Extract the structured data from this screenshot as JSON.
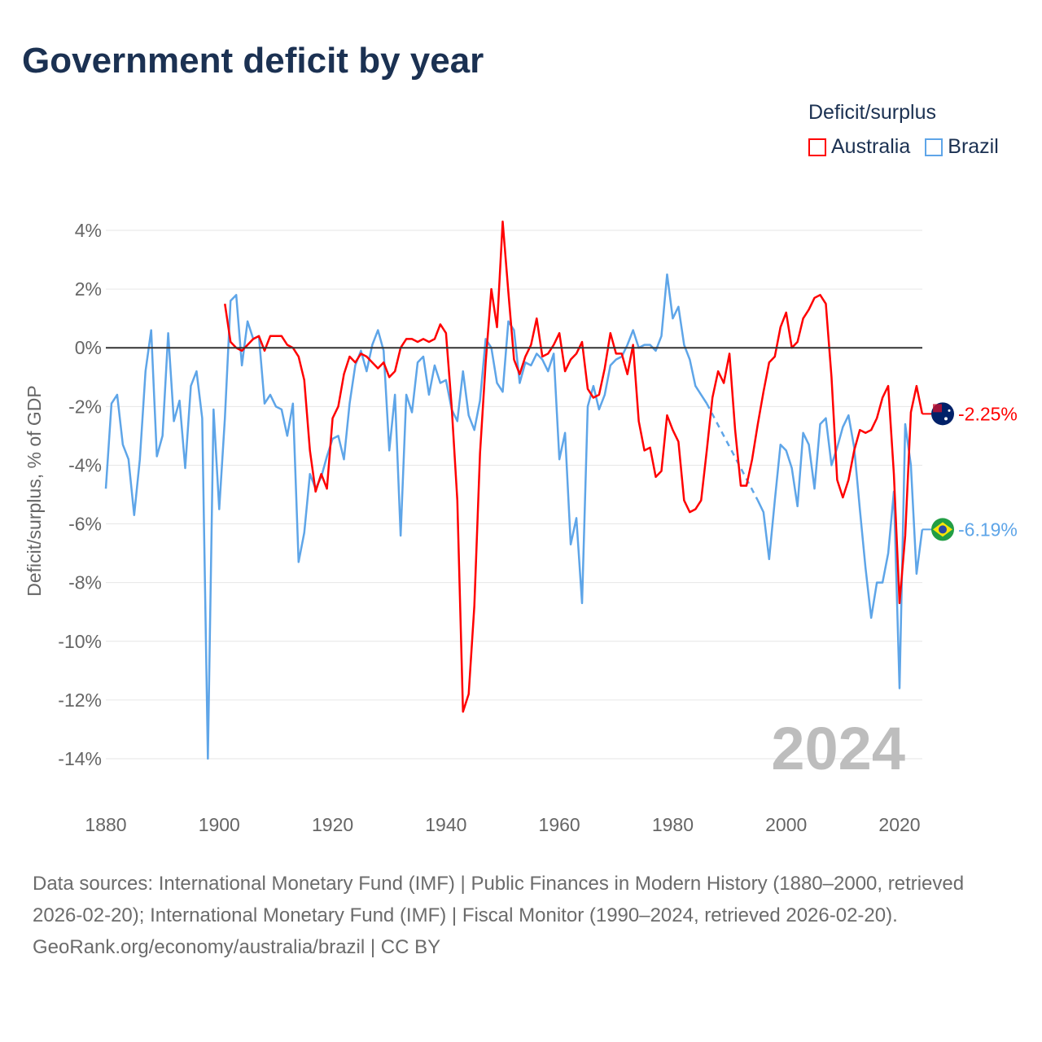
{
  "title": "Government deficit by year",
  "legend": {
    "title": "Deficit/surplus",
    "items": [
      {
        "name": "Australia",
        "color": "#ff0000"
      },
      {
        "name": "Brazil",
        "color": "#5ea5e8"
      }
    ]
  },
  "footer": {
    "sources": "Data sources: International Monetary Fund (IMF) | Public Finances in Modern History (1880–2000, retrieved 2026-02-20); International Monetary Fund (IMF) | Fiscal Monitor (1990–2024, retrieved 2026-02-20).",
    "credit": "GeoRank.org/economy/australia/brazil | CC BY"
  },
  "chart_data": {
    "type": "line",
    "title": "Government deficit by year",
    "xlabel": "",
    "ylabel": "Deficit/surplus, % of GDP",
    "year_watermark": "2024",
    "xlim": [
      1880,
      2024
    ],
    "ylim": [
      -14,
      4
    ],
    "x_ticks": [
      "1880",
      "1900",
      "1920",
      "1940",
      "1960",
      "1980",
      "2000",
      "2020"
    ],
    "y_ticks": [
      {
        "v": 4,
        "label": "4%"
      },
      {
        "v": 2,
        "label": "2%"
      },
      {
        "v": 0,
        "label": "0%"
      },
      {
        "v": -2,
        "label": "-2%"
      },
      {
        "v": -4,
        "label": "-4%"
      },
      {
        "v": -6,
        "label": "-6%"
      },
      {
        "v": -8,
        "label": "-8%"
      },
      {
        "v": -10,
        "label": "-10%"
      },
      {
        "v": -12,
        "label": "-12%"
      },
      {
        "v": -14,
        "label": "-14%"
      }
    ],
    "grid": true,
    "legend_position": "top-right",
    "series": [
      {
        "name": "Australia",
        "color": "#ff0000",
        "end_label": "-2.25%",
        "start": 1901,
        "values": [
          1.5,
          0.2,
          0.0,
          -0.1,
          0.1,
          0.3,
          0.4,
          -0.1,
          0.4,
          0.4,
          0.4,
          0.1,
          0.0,
          -0.3,
          -1.1,
          -3.5,
          -4.9,
          -4.3,
          -4.8,
          -2.4,
          -2.0,
          -0.9,
          -0.3,
          -0.5,
          -0.2,
          -0.3,
          -0.5,
          -0.7,
          -0.5,
          -1.0,
          -0.8,
          0.0,
          0.3,
          0.3,
          0.2,
          0.3,
          0.2,
          0.3,
          0.8,
          0.5,
          -2.0,
          -5.2,
          -12.4,
          -11.8,
          -8.8,
          -3.6,
          -0.5,
          2.0,
          0.7,
          4.3,
          1.9,
          -0.4,
          -0.9,
          -0.3,
          0.1,
          1.0,
          -0.3,
          -0.2,
          0.1,
          0.5,
          -0.8,
          -0.4,
          -0.2,
          0.2,
          -1.4,
          -1.7,
          -1.6,
          -0.7,
          0.5,
          -0.2,
          -0.2,
          -0.9,
          0.1,
          -2.5,
          -3.5,
          -3.4,
          -4.4,
          -4.2,
          -2.3,
          -2.8,
          -3.2,
          -5.2,
          -5.6,
          -5.5,
          -5.2,
          -3.5,
          -1.7,
          -0.8,
          -1.2,
          -0.2,
          -2.8,
          -4.7,
          -4.7,
          -3.8,
          -2.6,
          -1.5,
          -0.5,
          -0.3,
          0.7,
          1.2,
          0.0,
          0.2,
          1.0,
          1.3,
          1.7,
          1.8,
          1.5,
          -1.0,
          -4.5,
          -5.1,
          -4.5,
          -3.5,
          -2.8,
          -2.9,
          -2.8,
          -2.4,
          -1.7,
          -1.3,
          -4.3,
          -8.7,
          -6.4,
          -2.2,
          -1.3,
          -2.25
        ]
      },
      {
        "name": "Brazil",
        "color": "#5ea5e8",
        "end_label": "-6.19%",
        "start": 1880,
        "values": [
          -4.8,
          -1.9,
          -1.6,
          -3.3,
          -3.8,
          -5.7,
          -3.8,
          -0.8,
          0.6,
          -3.7,
          -3.0,
          0.5,
          -2.5,
          -1.8,
          -4.1,
          -1.3,
          -0.8,
          -2.4,
          -14.0,
          -2.1,
          -5.5,
          -2.4,
          1.6,
          1.8,
          -0.6,
          0.9,
          0.3,
          0.4,
          -1.9,
          -1.6,
          -2.0,
          -2.1,
          -3.0,
          -1.9,
          -7.3,
          -6.3,
          -4.3,
          -4.8,
          -4.4,
          -3.7,
          -3.1,
          -3.0,
          -3.8,
          -1.9,
          -0.6,
          -0.1,
          -0.8,
          0.1,
          0.6,
          -0.1,
          -3.5,
          -1.6,
          -6.4,
          -1.6,
          -2.2,
          -0.5,
          -0.3,
          -1.6,
          -0.6,
          -1.2,
          -1.1,
          -2.1,
          -2.5,
          -0.8,
          -2.3,
          -2.8,
          -1.8,
          0.3,
          0.0,
          -1.2,
          -1.5,
          0.9,
          0.6,
          -1.2,
          -0.5,
          -0.6,
          -0.2,
          -0.4,
          -0.8,
          -0.2,
          -3.8,
          -2.9,
          -6.7,
          -5.8,
          -8.7,
          -2.0,
          -1.3,
          -2.1,
          -1.6,
          -0.6,
          -0.4,
          -0.3,
          0.1,
          0.6,
          0.0,
          0.1,
          0.1,
          -0.1,
          0.4,
          2.5,
          1.0,
          1.4,
          0.1,
          -0.4,
          -1.3,
          -1.6,
          -1.9,
          null,
          null,
          null,
          null,
          null,
          null,
          null,
          null,
          -5.2,
          -5.6,
          -7.2,
          -5.2,
          -3.3,
          -3.5,
          -4.1,
          -5.4,
          -2.9,
          -3.3,
          -4.8,
          -2.6,
          -2.4,
          -4.0,
          -3.4,
          -2.7,
          -2.3,
          -3.4,
          -5.5,
          -7.5,
          -9.2,
          -8.0,
          -8.0,
          -7.0,
          -4.9,
          -11.6,
          -2.6,
          -4.0,
          -7.7,
          -6.19
        ]
      }
    ]
  }
}
